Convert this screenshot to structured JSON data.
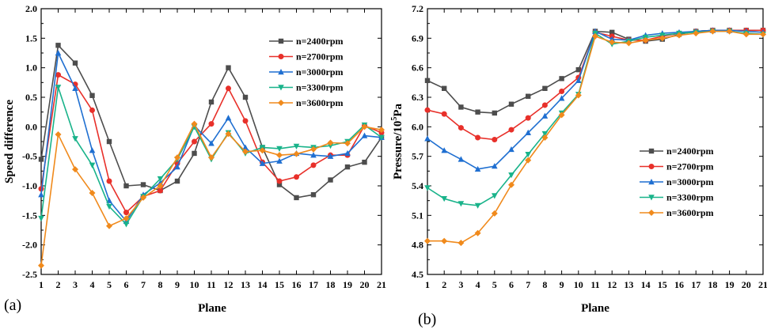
{
  "chart_data": [
    {
      "type": "line",
      "panel_label": "(a)",
      "xlabel": "Plane",
      "ylabel": "Speed difference",
      "ylabel_sup": "",
      "ylabel_tail": "",
      "xlim": [
        1,
        21
      ],
      "ylim": [
        -2.5,
        2.0
      ],
      "x": [
        1,
        2,
        3,
        4,
        5,
        6,
        7,
        8,
        9,
        10,
        11,
        12,
        13,
        14,
        15,
        16,
        17,
        18,
        19,
        20,
        21
      ],
      "xticks": [
        "1",
        "2",
        "3",
        "4",
        "5",
        "6",
        "7",
        "8",
        "9",
        "10",
        "11",
        "12",
        "13",
        "14",
        "15",
        "16",
        "17",
        "18",
        "19",
        "20",
        "21"
      ],
      "yticks": [
        {
          "v": 2.0,
          "label": "2.0"
        },
        {
          "v": 1.5,
          "label": "1.5"
        },
        {
          "v": 1.0,
          "label": "1.0"
        },
        {
          "v": 0.5,
          "label": "0.5"
        },
        {
          "v": 0.0,
          "label": "0.0"
        },
        {
          "v": -0.5,
          "label": "-0.5"
        },
        {
          "v": -1.0,
          "label": "-1.0"
        },
        {
          "v": -1.5,
          "label": "-1.5"
        },
        {
          "v": -2.0,
          "label": "-2.0"
        },
        {
          "v": -2.5,
          "label": "-2.5"
        }
      ],
      "legend_position": "top-right",
      "series": [
        {
          "name": "n=2400rpm",
          "color": "#4d4d4d",
          "marker": "square",
          "values": [
            -0.55,
            1.38,
            1.08,
            0.53,
            -0.25,
            -1.0,
            -0.98,
            -1.08,
            -0.92,
            -0.45,
            0.42,
            1.0,
            0.5,
            -0.35,
            -0.98,
            -1.2,
            -1.15,
            -0.9,
            -0.68,
            -0.6,
            -0.18
          ]
        },
        {
          "name": "n=2700rpm",
          "color": "#e8302a",
          "marker": "circle",
          "values": [
            -1.05,
            0.88,
            0.72,
            0.28,
            -0.92,
            -1.45,
            -1.18,
            -1.08,
            -0.62,
            -0.25,
            0.05,
            0.65,
            0.1,
            -0.6,
            -0.92,
            -0.85,
            -0.65,
            -0.48,
            -0.48,
            0.02,
            -0.1
          ]
        },
        {
          "name": "n=3000rpm",
          "color": "#1f6fd1",
          "marker": "triangle-up",
          "values": [
            -1.15,
            1.25,
            0.65,
            -0.4,
            -1.25,
            -1.6,
            -1.15,
            -0.95,
            -0.68,
            0.02,
            -0.28,
            0.15,
            -0.35,
            -0.62,
            -0.58,
            -0.45,
            -0.48,
            -0.5,
            -0.45,
            -0.15,
            -0.18
          ]
        },
        {
          "name": "n=3300rpm",
          "color": "#19b38a",
          "marker": "triangle-down",
          "values": [
            -1.55,
            0.67,
            -0.2,
            -0.65,
            -1.35,
            -1.65,
            -1.18,
            -0.88,
            -0.55,
            0.0,
            -0.55,
            -0.1,
            -0.45,
            -0.35,
            -0.37,
            -0.33,
            -0.35,
            -0.32,
            -0.25,
            0.03,
            -0.18
          ]
        },
        {
          "name": "n=3600rpm",
          "color": "#f08a1c",
          "marker": "diamond",
          "values": [
            -2.35,
            -0.13,
            -0.72,
            -1.12,
            -1.68,
            -1.55,
            -1.2,
            -1.0,
            -0.52,
            0.05,
            -0.52,
            -0.12,
            -0.42,
            -0.4,
            -0.48,
            -0.46,
            -0.38,
            -0.27,
            -0.28,
            0.0,
            -0.05
          ]
        }
      ]
    },
    {
      "type": "line",
      "panel_label": "(b)",
      "xlabel": "Plane",
      "ylabel": "Pressure/10",
      "ylabel_sup": "5",
      "ylabel_tail": "Pa",
      "xlim": [
        1,
        21
      ],
      "ylim": [
        4.5,
        7.2
      ],
      "x": [
        1,
        2,
        3,
        4,
        5,
        6,
        7,
        8,
        9,
        10,
        11,
        12,
        13,
        14,
        15,
        16,
        17,
        18,
        19,
        20,
        21
      ],
      "xticks": [
        "1",
        "2",
        "3",
        "4",
        "5",
        "6",
        "7",
        "8",
        "9",
        "10",
        "11",
        "12",
        "13",
        "14",
        "15",
        "16",
        "17",
        "18",
        "19",
        "20",
        "21"
      ],
      "yticks": [
        {
          "v": 7.2,
          "label": "7.2"
        },
        {
          "v": 6.9,
          "label": "6.9"
        },
        {
          "v": 6.6,
          "label": "6.6"
        },
        {
          "v": 6.3,
          "label": "6.3"
        },
        {
          "v": 6.0,
          "label": "6.0"
        },
        {
          "v": 5.7,
          "label": "5.7"
        },
        {
          "v": 5.4,
          "label": "5.4"
        },
        {
          "v": 5.1,
          "label": "5.1"
        },
        {
          "v": 4.8,
          "label": "4.8"
        },
        {
          "v": 4.5,
          "label": "4.5"
        }
      ],
      "legend_position": "center-right",
      "series": [
        {
          "name": "n=2400rpm",
          "color": "#4d4d4d",
          "marker": "square",
          "values": [
            6.47,
            6.39,
            6.2,
            6.15,
            6.14,
            6.23,
            6.31,
            6.39,
            6.49,
            6.58,
            6.97,
            6.96,
            6.89,
            6.87,
            6.89,
            6.94,
            6.97,
            6.98,
            6.98,
            6.98,
            6.98
          ]
        },
        {
          "name": "n=2700rpm",
          "color": "#e8302a",
          "marker": "circle",
          "values": [
            6.17,
            6.13,
            5.99,
            5.89,
            5.87,
            5.97,
            6.09,
            6.22,
            6.36,
            6.5,
            6.96,
            6.92,
            6.88,
            6.88,
            6.92,
            6.95,
            6.97,
            6.98,
            6.98,
            6.98,
            6.98
          ]
        },
        {
          "name": "n=3000rpm",
          "color": "#1f6fd1",
          "marker": "triangle-up",
          "values": [
            5.88,
            5.76,
            5.67,
            5.57,
            5.6,
            5.77,
            5.94,
            6.11,
            6.29,
            6.47,
            6.97,
            6.89,
            6.88,
            6.93,
            6.95,
            6.96,
            6.97,
            6.98,
            6.98,
            6.97,
            6.96
          ]
        },
        {
          "name": "n=3300rpm",
          "color": "#19b38a",
          "marker": "triangle-down",
          "values": [
            5.38,
            5.27,
            5.22,
            5.2,
            5.3,
            5.51,
            5.72,
            5.93,
            6.14,
            6.33,
            6.95,
            6.84,
            6.87,
            6.91,
            6.93,
            6.95,
            6.96,
            6.97,
            6.97,
            6.95,
            6.94
          ]
        },
        {
          "name": "n=3600rpm",
          "color": "#f08a1c",
          "marker": "diamond",
          "values": [
            4.84,
            4.84,
            4.82,
            4.92,
            5.12,
            5.41,
            5.66,
            5.89,
            6.12,
            6.32,
            6.92,
            6.86,
            6.85,
            6.88,
            6.9,
            6.93,
            6.95,
            6.97,
            6.97,
            6.94,
            6.94
          ]
        }
      ]
    }
  ]
}
